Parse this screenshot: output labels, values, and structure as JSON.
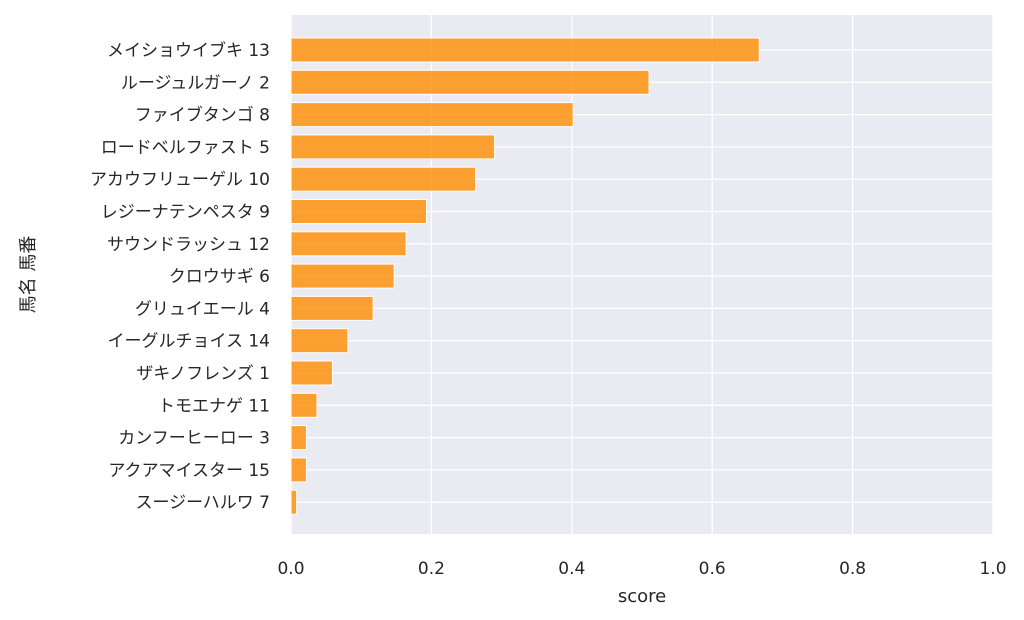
{
  "chart_data": {
    "type": "bar",
    "orientation": "horizontal",
    "categories": [
      "メイショウイブキ 13",
      "ルージュルガーノ 2",
      "ファイブタンゴ 8",
      "ロードベルファスト 5",
      "アカウフリューゲル 10",
      "レジーナテンペスタ 9",
      "サウンドラッシュ 12",
      "クロウサギ 6",
      "グリュイエール 4",
      "イーグルチョイス 14",
      "ザキノフレンズ 1",
      "トモエナゲ 11",
      "カンフーヒーロー 3",
      "アクアマイスター 15",
      "スージーハルワ 7"
    ],
    "values": [
      0.667,
      0.51,
      0.402,
      0.29,
      0.263,
      0.193,
      0.164,
      0.147,
      0.117,
      0.081,
      0.059,
      0.037,
      0.022,
      0.022,
      0.008
    ],
    "xlabel": "score",
    "ylabel": "馬名 馬番",
    "xlim": [
      0,
      1.0
    ],
    "xticks": [
      "0.0",
      "0.2",
      "0.4",
      "0.6",
      "0.8",
      "1.0"
    ],
    "grid": true,
    "colors": {
      "bar": "#ff8c00",
      "plot_background": "#eaeaf2",
      "grid": "#ffffff",
      "text": "#262626"
    }
  }
}
